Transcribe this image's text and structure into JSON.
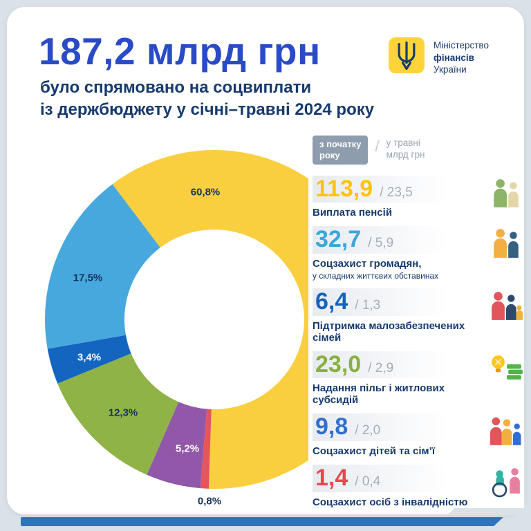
{
  "header": {
    "amount": "187,2 млрд грн",
    "subtitle_line1": "було спрямовано на соцвиплати",
    "subtitle_line2": "із держбюджету у січні–травні 2024 року"
  },
  "logo": {
    "line1": "Міністерство",
    "line2": "фінансів",
    "line3": "України"
  },
  "legend": {
    "badge_line1": "з початку",
    "badge_line2": "року",
    "separator": "/",
    "period_line1": "у травні",
    "period_line2": "млрд грн"
  },
  "chart_data": {
    "type": "pie",
    "variant": "donut",
    "title": "187,2 млрд грн було спрямовано на соцвиплати із держбюджету у січні–травні 2024 року",
    "total": 187.2,
    "total_label": "187,2 млрд грн",
    "units": "млрд грн",
    "legend_position": "right",
    "segments": [
      {
        "label": "Виплата пенсій",
        "sublabel": "",
        "value_total": 113.9,
        "total_display": "113,9",
        "value_may": 23.5,
        "may_display": "/ 23,5",
        "pct": 60.8,
        "pct_label": "60,8%",
        "color": "#F9CF3F",
        "number_color": "#FFC20E",
        "pct_text_color": "#16325C"
      },
      {
        "label": "Соцзахист громадян,",
        "sublabel": "у складних життєвих обставинах",
        "value_total": 32.7,
        "total_display": "32,7",
        "value_may": 5.9,
        "may_display": "/ 5,9",
        "pct": 17.5,
        "pct_label": "17,5%",
        "color": "#47A8DD",
        "number_color": "#39A6DC",
        "pct_text_color": "#16325C"
      },
      {
        "label": "Підтримка малозабезпечених сімей",
        "sublabel": "",
        "value_total": 6.4,
        "total_display": "6,4",
        "value_may": 1.3,
        "may_display": "/ 1,3",
        "pct": 3.4,
        "pct_label": "3,4%",
        "color": "#1465C0",
        "number_color": "#1562BE",
        "pct_text_color": "#FFFFFF"
      },
      {
        "label": "Надання пільг і житлових субсидій",
        "sublabel": "",
        "value_total": 23.0,
        "total_display": "23,0",
        "value_may": 2.9,
        "may_display": "/ 2,9",
        "pct": 12.3,
        "pct_label": "12,3%",
        "color": "#8FB347",
        "number_color": "#88B03F",
        "pct_text_color": "#16325C"
      },
      {
        "label": "Соцзахист дітей та сім’ї",
        "sublabel": "",
        "value_total": 9.8,
        "total_display": "9,8",
        "value_may": 2.0,
        "may_display": "/ 2,0",
        "pct": 5.2,
        "pct_label": "5,2%",
        "color": "#9157A8",
        "number_color": "#2F6FD0",
        "pct_text_color": "#FFFFFF"
      },
      {
        "label": "Соцзахист осіб з інвалідністю",
        "sublabel": "",
        "value_total": 1.4,
        "total_display": "1,4",
        "value_may": 0.4,
        "may_display": "/ 0,4",
        "pct": 0.8,
        "pct_label": "0,8%",
        "color": "#E4565C",
        "number_color": "#E8474C",
        "pct_text_color": "#16325C"
      }
    ],
    "layout": {
      "start_angle_deg": 323,
      "clockwise_order": [
        0,
        5,
        4,
        3,
        2,
        1
      ],
      "outer_radius": 245,
      "inner_radius": 130
    }
  }
}
